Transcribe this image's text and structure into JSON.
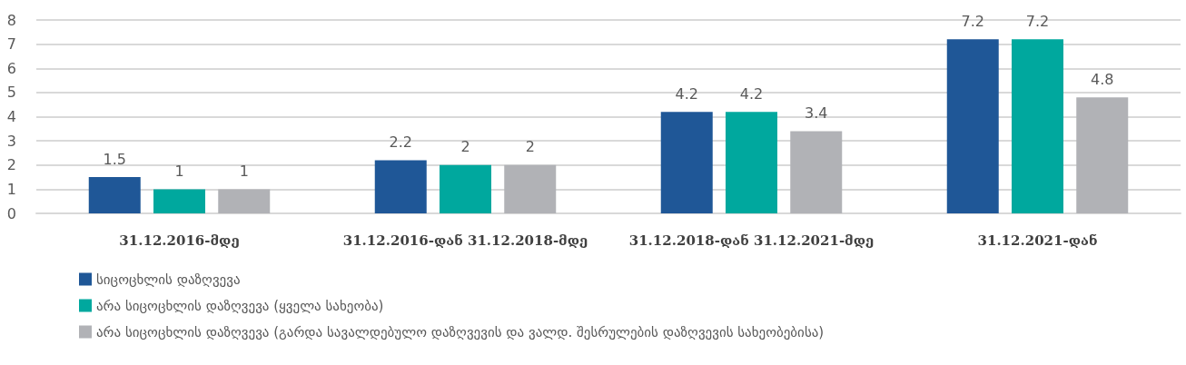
{
  "chart_data": {
    "type": "bar",
    "categories": [
      "31.12.2016-მდე",
      "31.12.2016-დან 31.12.2018-მდე",
      "31.12.2018-დან 31.12.2021-მდე",
      "31.12.2021-დან"
    ],
    "series": [
      {
        "name": "სიცოცხლის დაზღვევა",
        "color": "#1f5797",
        "values": [
          1.5,
          2.2,
          4.2,
          7.2
        ]
      },
      {
        "name": "არა სიცოცხლის დაზღვევა (ყველა სახეობა)",
        "color": "#00a89e",
        "values": [
          1,
          2,
          4.2,
          7.2
        ]
      },
      {
        "name": "არა სიცოცხლის დაზღვევა (გარდა სავალდებულო დაზღვევის და ვალდ. შესრულების დაზღვევის სახეობებისა)",
        "color": "#b1b2b6",
        "values": [
          1,
          2,
          3.4,
          4.8
        ]
      }
    ],
    "ylim": [
      0,
      8
    ],
    "yticks": [
      0,
      1,
      2,
      3,
      4,
      5,
      6,
      7,
      8
    ],
    "grid": "y",
    "legend": "bottom left",
    "data_labels": true
  }
}
